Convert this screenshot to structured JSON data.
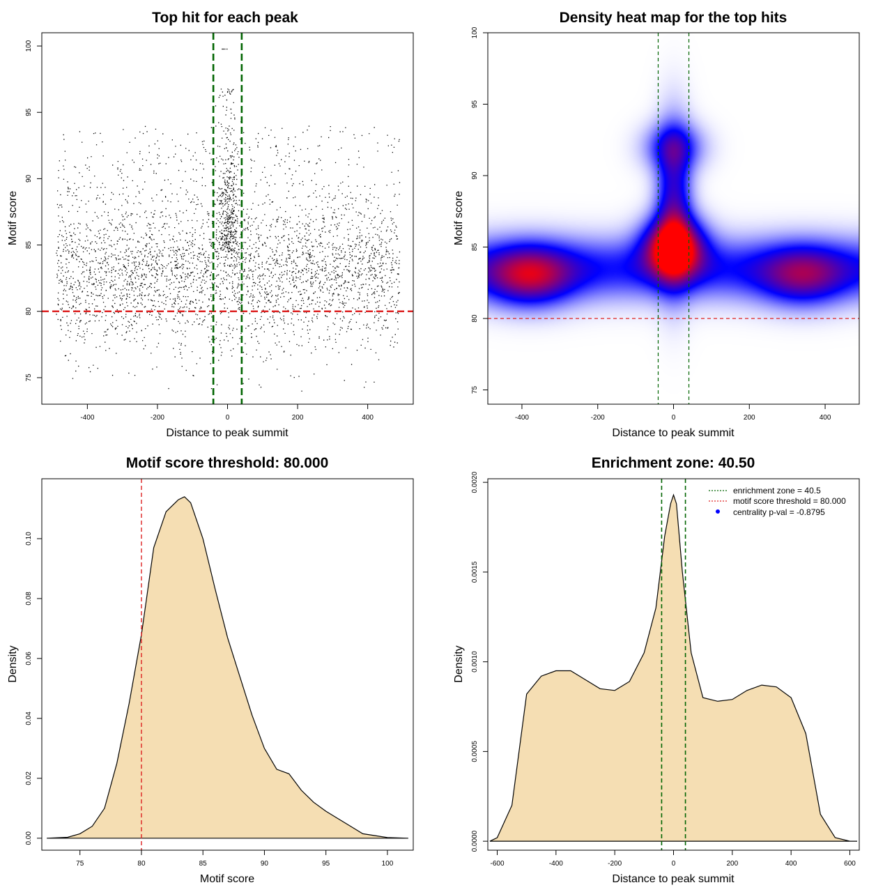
{
  "colors": {
    "threshold_line": "#dd2222",
    "zone_line": "#006400",
    "density_fill": "#f5deb3",
    "heat_low": "#ffffff",
    "heat_mid": "#0000ff",
    "heat_high": "#ff0000",
    "points": "#000000",
    "legend_dot": "#0000ff"
  },
  "chart_data": [
    {
      "type": "scatter",
      "title": "Top hit for each peak",
      "xlabel": "Distance to peak summit",
      "ylabel": "Motif score",
      "xlim": [
        -530,
        530
      ],
      "ylim": [
        73,
        101
      ],
      "xticks": [
        "-400",
        "-200",
        "0",
        "200",
        "400"
      ],
      "yticks": [
        "75",
        "80",
        "85",
        "90",
        "95",
        "100"
      ],
      "point_count": 4000,
      "point_distribution": "uniform in x from -490 to 490 with a central peak (|x| < 40) extending to 100; motif scores mostly between 77 and 94",
      "hlines": [
        {
          "y": 80,
          "style": "dashed",
          "color_key": "threshold_line"
        }
      ],
      "vlines": [
        {
          "x": -40.5,
          "style": "dashed",
          "color_key": "zone_line"
        },
        {
          "x": 40.5,
          "style": "dashed",
          "color_key": "zone_line"
        }
      ]
    },
    {
      "type": "heatmap",
      "title": "Density heat map for the top hits",
      "xlabel": "Distance to peak summit",
      "ylabel": "Motif score",
      "xlim": [
        -490,
        490
      ],
      "ylim": [
        74,
        100
      ],
      "xticks": [
        "-400",
        "-200",
        "0",
        "200",
        "400"
      ],
      "yticks": [
        "75",
        "80",
        "85",
        "90",
        "95",
        "100"
      ],
      "colormap": [
        "white",
        "blue",
        "red"
      ],
      "density_modes": [
        {
          "x": 0,
          "y": 85,
          "intensity": 1.0
        },
        {
          "x": -380,
          "y": 83,
          "intensity": 0.6
        },
        {
          "x": 340,
          "y": 83,
          "intensity": 0.45
        },
        {
          "x": 0,
          "y": 92,
          "intensity": 0.35
        }
      ],
      "hlines": [
        {
          "y": 80,
          "style": "dashed",
          "color_key": "threshold_line"
        }
      ],
      "vlines": [
        {
          "x": -40.5,
          "style": "dashed",
          "color_key": "zone_line"
        },
        {
          "x": 40.5,
          "style": "dashed",
          "color_key": "zone_line"
        }
      ]
    },
    {
      "type": "area",
      "title": "Motif score threshold: 80.000",
      "xlabel": "Motif score",
      "ylabel": "Density",
      "xlim": [
        71.9,
        102.1
      ],
      "ylim": [
        -0.004,
        0.12
      ],
      "xticks": [
        "75",
        "80",
        "85",
        "90",
        "95",
        "100"
      ],
      "yticks": [
        "0.00",
        "0.02",
        "0.04",
        "0.06",
        "0.08",
        "0.10"
      ],
      "x": [
        72.3,
        74,
        75,
        76,
        77,
        78,
        79,
        80,
        81,
        82,
        83,
        83.5,
        84,
        85,
        86,
        87,
        88,
        89,
        90,
        91,
        92,
        93,
        94,
        95,
        96,
        97,
        98,
        100,
        101.7
      ],
      "y": [
        0.0,
        0.0003,
        0.0015,
        0.004,
        0.01,
        0.025,
        0.045,
        0.068,
        0.097,
        0.109,
        0.113,
        0.114,
        0.112,
        0.1,
        0.083,
        0.067,
        0.054,
        0.041,
        0.03,
        0.023,
        0.0215,
        0.016,
        0.012,
        0.009,
        0.0065,
        0.004,
        0.0015,
        0.0002,
        0.0
      ],
      "vlines": [
        {
          "x": 80,
          "style": "dashed",
          "color_key": "threshold_line"
        }
      ]
    },
    {
      "type": "area",
      "title": "Enrichment zone: 40.50",
      "xlabel": "Distance to peak summit",
      "ylabel": "Density",
      "xlim": [
        -632,
        632
      ],
      "ylim": [
        -5e-05,
        0.00202
      ],
      "xticks": [
        "-600",
        "-400",
        "-200",
        "0",
        "200",
        "400",
        "600"
      ],
      "yticks": [
        "0.0000",
        "0.0005",
        "0.0010",
        "0.0015",
        "0.0020"
      ],
      "x": [
        -625,
        -600,
        -550,
        -500,
        -450,
        -400,
        -350,
        -300,
        -250,
        -200,
        -150,
        -100,
        -60,
        -30,
        -10,
        0,
        10,
        30,
        60,
        100,
        150,
        200,
        250,
        300,
        350,
        400,
        450,
        500,
        550,
        600,
        625
      ],
      "y": [
        0.0,
        2e-05,
        0.0002,
        0.00082,
        0.00092,
        0.00095,
        0.00095,
        0.0009,
        0.00085,
        0.00084,
        0.00089,
        0.00105,
        0.0013,
        0.0017,
        0.00188,
        0.00193,
        0.00188,
        0.0015,
        0.00105,
        0.0008,
        0.00078,
        0.00079,
        0.00084,
        0.00087,
        0.00086,
        0.0008,
        0.0006,
        0.00015,
        2e-05,
        0.0,
        0.0
      ],
      "vlines": [
        {
          "x": -40.5,
          "style": "dashed",
          "color_key": "zone_line"
        },
        {
          "x": 40.5,
          "style": "dashed",
          "color_key": "zone_line"
        }
      ],
      "legend": {
        "placement": "top-right",
        "entries": [
          {
            "label": "enrichment zone = 40.5",
            "marker": "dotted-line",
            "color_key": "zone_line"
          },
          {
            "label": "motif score threshold = 80.000",
            "marker": "dotted-line",
            "color_key": "threshold_line"
          },
          {
            "label": "centrality p-val = -0.8795",
            "marker": "dot",
            "color_key": "legend_dot"
          }
        ]
      }
    }
  ]
}
